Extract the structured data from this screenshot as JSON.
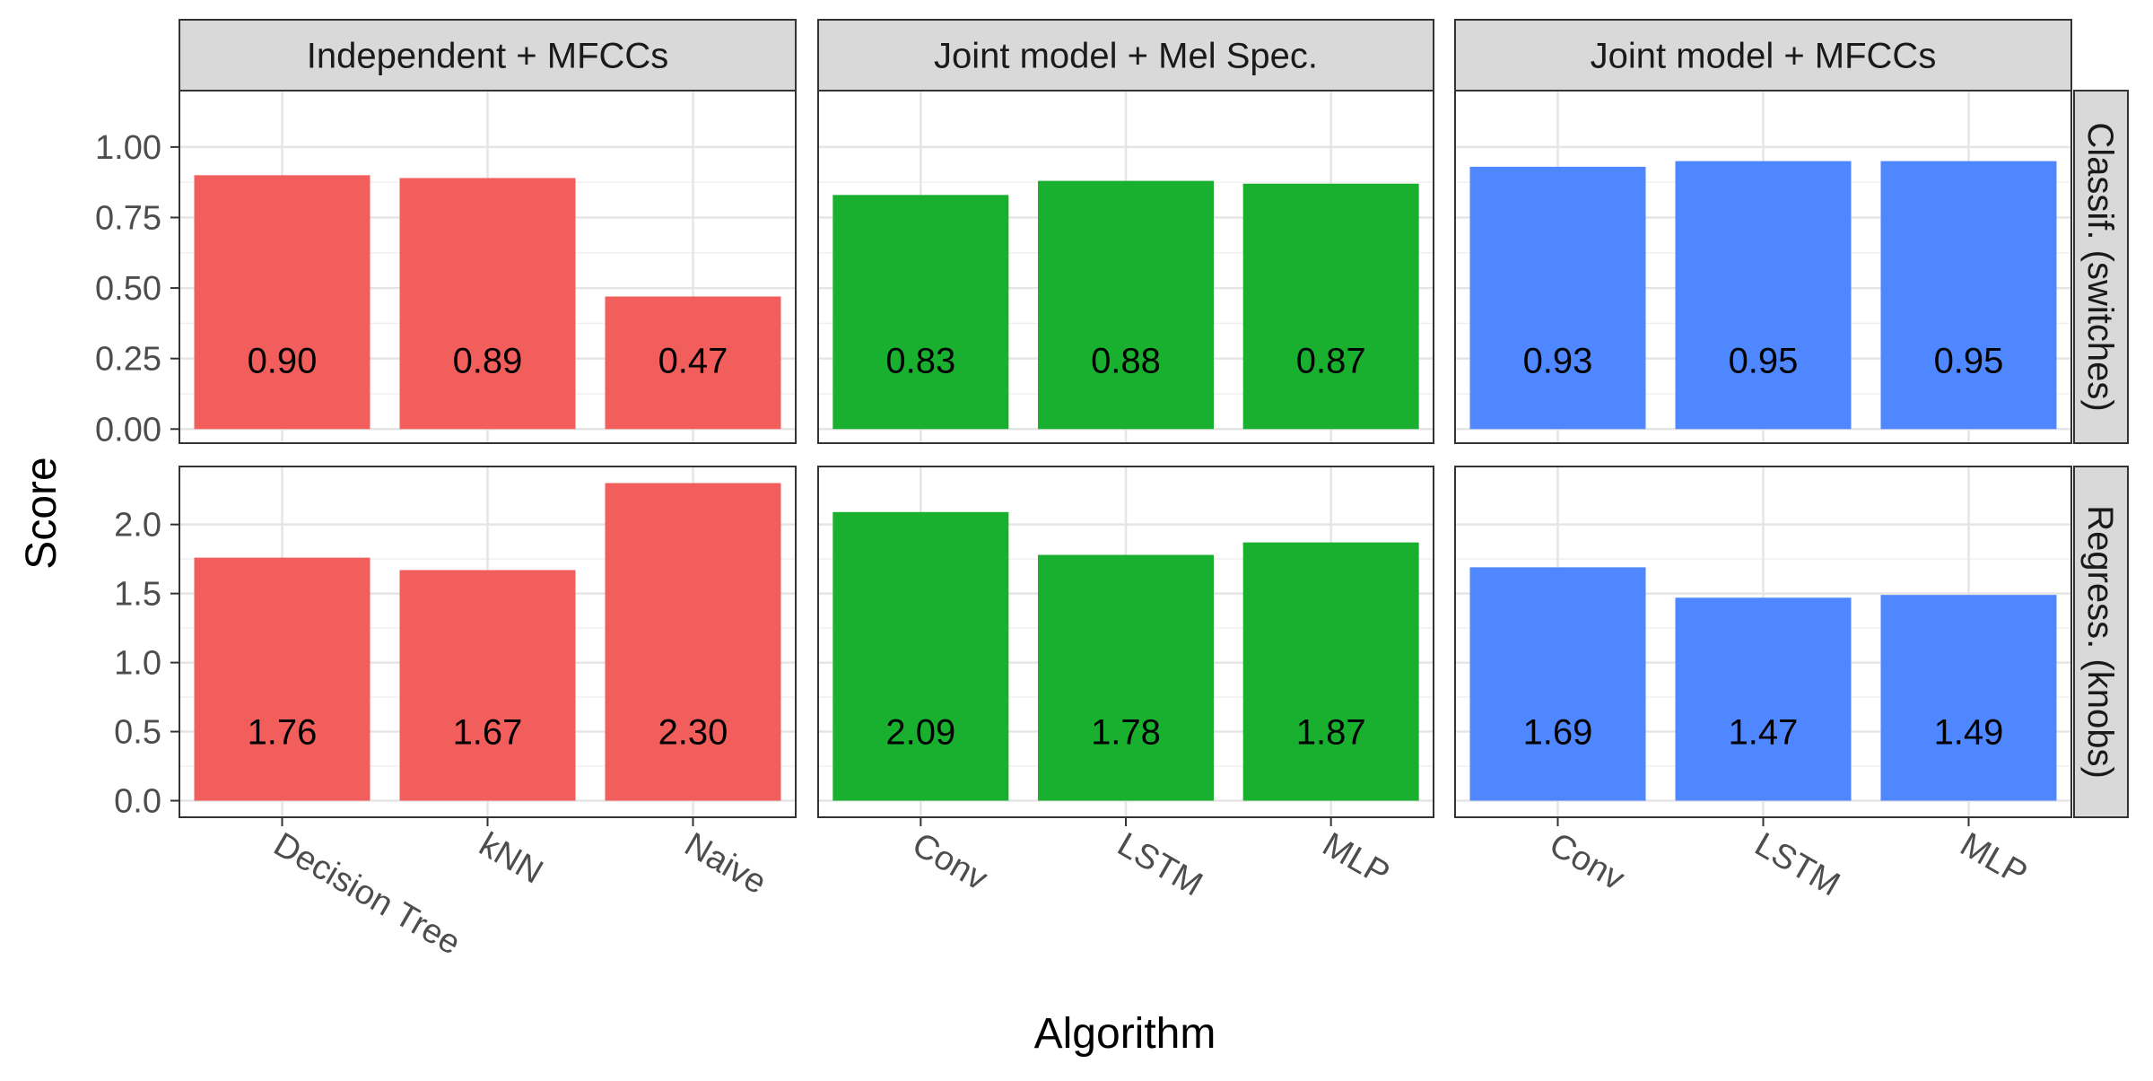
{
  "chart_data": {
    "type": "bar",
    "xlabel": "Algorithm",
    "ylabel": "Score",
    "grid": true,
    "legend": "none",
    "columns": [
      {
        "label": "Independent + MFCCs",
        "color": "#F25E5B",
        "categories": [
          "Decision Tree",
          "kNN",
          "Naive"
        ]
      },
      {
        "label": "Joint model + Mel Spec.",
        "color": "#19AF2F",
        "categories": [
          "Conv",
          "LSTM",
          "MLP"
        ]
      },
      {
        "label": "Joint model + MFCCs",
        "color": "#4E87FF",
        "categories": [
          "Conv",
          "LSTM",
          "MLP"
        ]
      }
    ],
    "rows": [
      {
        "label": "Classif. (switches)",
        "ylim": [
          -0.05,
          1.2
        ],
        "yticks": [
          "0.00",
          "0.25",
          "0.50",
          "0.75",
          "1.00"
        ],
        "ytick_values": [
          0,
          0.25,
          0.5,
          0.75,
          1.0
        ],
        "values": [
          [
            0.9,
            0.89,
            0.47
          ],
          [
            0.83,
            0.88,
            0.87
          ],
          [
            0.93,
            0.95,
            0.95
          ]
        ],
        "value_labels": [
          [
            "0.90",
            "0.89",
            "0.47"
          ],
          [
            "0.83",
            "0.88",
            "0.87"
          ],
          [
            "0.93",
            "0.95",
            "0.95"
          ]
        ]
      },
      {
        "label": "Regress. (knobs)",
        "ylim": [
          -0.12,
          2.42
        ],
        "yticks": [
          "0.0",
          "0.5",
          "1.0",
          "1.5",
          "2.0"
        ],
        "ytick_values": [
          0,
          0.5,
          1.0,
          1.5,
          2.0
        ],
        "values": [
          [
            1.76,
            1.67,
            2.3
          ],
          [
            2.09,
            1.78,
            1.87
          ],
          [
            1.69,
            1.47,
            1.49
          ]
        ],
        "value_labels": [
          [
            "1.76",
            "1.67",
            "2.30"
          ],
          [
            "2.09",
            "1.78",
            "1.87"
          ],
          [
            "1.69",
            "1.47",
            "1.49"
          ]
        ]
      }
    ]
  }
}
